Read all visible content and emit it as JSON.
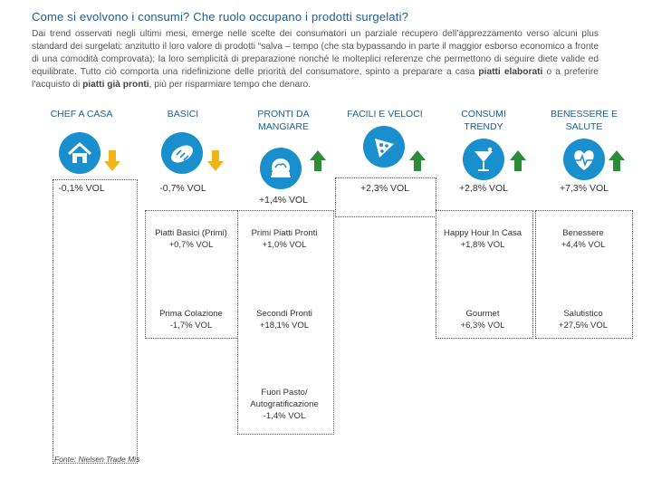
{
  "title": "Come si evolvono i consumi? Che ruolo occupano i prodotti surgelati?",
  "intro": {
    "part1": "Dai trend osservati negli ultimi mesi, emerge nelle scelte dei consumatori un parziale recupero dell’apprezzamento verso alcuni plus standard dei surgelati: anzitutto il loro valore di prodotti “salva – tempo (che sta bypassando in parte il maggior esborso economico a fronte di una comodità comprovata); la loro semplicità di preparazione nonché le molteplici referenze che permettono di seguire diete valide ed equilibrate. Tutto ciò comporta una ridefinizione delle priorità del consumatore, spinto a preparare a casa ",
    "bold1": "piatti elaborati",
    "part2": " o a preferire l’acquisto di ",
    "bold2": "piatti già pronti",
    "part3": ", più per risparmiare tempo che denaro."
  },
  "columns": [
    {
      "label": "CHEF A CASA",
      "icon": "house-icon",
      "trend": "down",
      "vol": "-0,1% VOL"
    },
    {
      "label": "BASICI",
      "icon": "bread-icon",
      "trend": "down",
      "vol": "-0,7% VOL"
    },
    {
      "label": "PRONTI DA\nMANGIARE",
      "icon": "cloche-icon",
      "trend": "up",
      "vol": "+1,4% VOL"
    },
    {
      "label": "FACILI E VELOCI",
      "icon": "pizza-icon",
      "trend": "up",
      "vol": "+2,3% VOL"
    },
    {
      "label": "CONSUMI\nTRENDY",
      "icon": "cocktail-icon",
      "trend": "up",
      "vol": "+2,8% VOL"
    },
    {
      "label": "BENESSERE E\nSALUTE",
      "icon": "heart-icon",
      "trend": "up",
      "vol": "+7,3% VOL"
    }
  ],
  "subcategories": {
    "basici": [
      {
        "text": "Piatti Basici (Primi)\n+0,7% VOL"
      },
      {
        "text": "Prima Colazione\n-1,7% VOL"
      }
    ],
    "pronti": [
      {
        "text": "Primi Piatti Pronti\n+1,0% VOL"
      },
      {
        "text": "Secondi Pronti\n+18,1% VOL"
      },
      {
        "text": "Fuori Pasto/\nAutogratificazione\n-1,4% VOL"
      }
    ],
    "trendy": [
      {
        "text": "Happy Hour In Casa\n+1,8% VOL"
      },
      {
        "text": "Gourmet\n+6,3% VOL"
      }
    ],
    "benessere": [
      {
        "text": "Benessere\n+4,4% VOL"
      },
      {
        "text": "Salutistico\n+27,5% VOL"
      }
    ]
  },
  "colors": {
    "accent": "#1a8fce",
    "title": "#1f5d8f",
    "up": "#2e8b3a",
    "down": "#f2b21b"
  },
  "source": "Fonte: Nielsen Trade Mis"
}
